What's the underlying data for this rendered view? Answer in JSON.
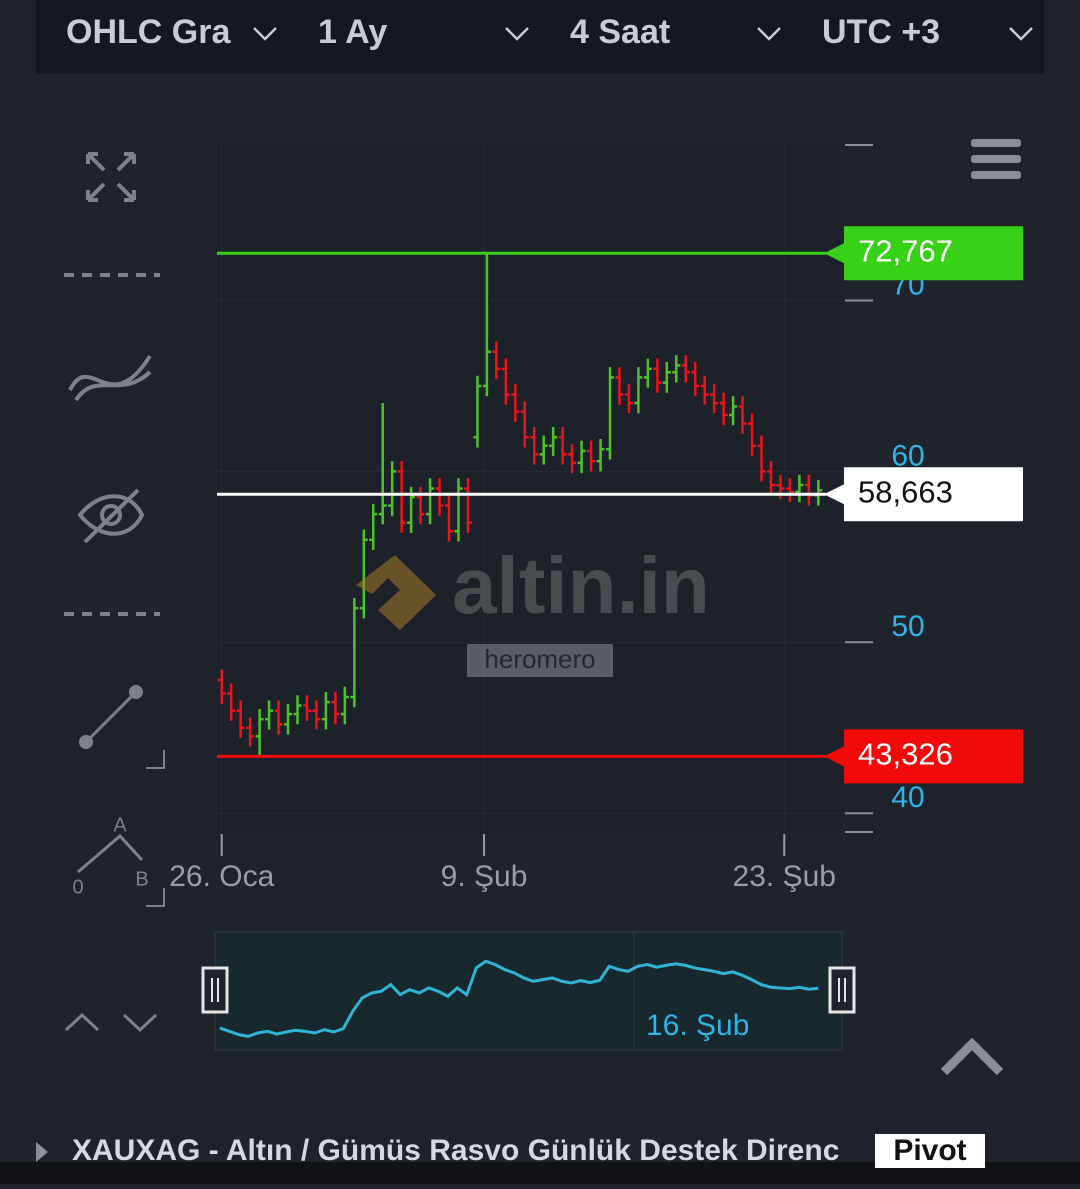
{
  "ui": {
    "dropdowns": [
      "OHLC Gra",
      "1 Ay",
      "4 Saat",
      "UTC +3"
    ],
    "tool_labels": [
      "A",
      "B",
      "0"
    ],
    "watermark": "altin.in",
    "watermark_user": "heromero",
    "bottom_title": "XAUXAG - Altın / Gümüs Rasvo Günlük Destek Direnc",
    "bottom_button": "Pivot"
  },
  "chart_data": {
    "type": "ohlc",
    "x": [
      0,
      1,
      2,
      3,
      4,
      5,
      6,
      7,
      8,
      9,
      10,
      11,
      12,
      13,
      14,
      15,
      16,
      17,
      18,
      19,
      20,
      21,
      22,
      23,
      24,
      25,
      26,
      27,
      28,
      29,
      30,
      31,
      32,
      33,
      34,
      35,
      36,
      37,
      38,
      39,
      40,
      41,
      42,
      43,
      44,
      45,
      46,
      47,
      48,
      49,
      50,
      51,
      52,
      53,
      54,
      55,
      56,
      57,
      58,
      59,
      60,
      61,
      62,
      63
    ],
    "open": [
      47.8,
      47.0,
      46.0,
      45.0,
      44.5,
      45.5,
      46.0,
      45.2,
      45.8,
      46.3,
      46.0,
      45.5,
      46.5,
      45.8,
      46.8,
      52.0,
      56.0,
      57.5,
      58.0,
      60.0,
      57.0,
      58.5,
      57.5,
      59.0,
      58.0,
      56.5,
      59.0,
      62.0,
      65.0,
      67.0,
      66.0,
      64.5,
      63.5,
      62.0,
      61.0,
      61.5,
      62.0,
      61.0,
      60.5,
      61.2,
      60.6,
      61.3,
      65.5,
      64.5,
      64.0,
      65.5,
      66.0,
      65.2,
      65.8,
      66.2,
      65.8,
      65.0,
      64.5,
      64.0,
      63.3,
      63.8,
      62.8,
      61.5,
      60.0,
      59.2,
      59.0,
      58.8,
      59.2,
      58.6
    ],
    "high": [
      48.4,
      47.6,
      46.6,
      45.6,
      46.1,
      46.6,
      46.6,
      46.4,
      46.9,
      46.9,
      46.6,
      47.1,
      47.1,
      47.4,
      52.6,
      56.6,
      58.1,
      64.0,
      60.6,
      60.6,
      59.1,
      59.1,
      59.6,
      59.6,
      58.6,
      59.6,
      59.6,
      65.6,
      72.767,
      67.6,
      66.6,
      65.1,
      64.1,
      62.6,
      62.1,
      62.6,
      62.6,
      61.6,
      61.8,
      61.8,
      61.9,
      66.1,
      66.1,
      65.1,
      66.1,
      66.6,
      66.6,
      66.4,
      66.8,
      66.8,
      66.4,
      65.6,
      65.1,
      64.6,
      64.4,
      64.4,
      63.4,
      62.1,
      60.6,
      59.8,
      59.6,
      59.8,
      59.8,
      59.5
    ],
    "low": [
      46.4,
      45.4,
      44.4,
      43.9,
      43.4,
      44.9,
      44.6,
      44.6,
      45.2,
      45.4,
      44.9,
      44.9,
      45.2,
      45.2,
      46.2,
      51.4,
      55.4,
      56.9,
      57.4,
      56.4,
      56.4,
      56.9,
      56.9,
      57.4,
      55.9,
      55.9,
      56.4,
      61.4,
      64.4,
      65.4,
      63.9,
      62.9,
      61.4,
      60.4,
      60.4,
      60.9,
      60.4,
      59.9,
      59.9,
      60.0,
      60.0,
      60.7,
      63.9,
      63.4,
      63.4,
      64.9,
      64.6,
      64.6,
      65.2,
      65.2,
      64.4,
      63.9,
      63.4,
      62.7,
      62.7,
      62.2,
      60.9,
      59.4,
      58.6,
      58.4,
      58.2,
      58.2,
      58.0,
      58.0
    ],
    "close": [
      47.0,
      46.0,
      45.0,
      44.5,
      45.5,
      46.0,
      45.2,
      45.8,
      46.3,
      46.0,
      45.5,
      46.5,
      45.8,
      46.8,
      52.0,
      56.0,
      57.5,
      58.0,
      60.0,
      57.0,
      58.5,
      57.5,
      59.0,
      58.0,
      56.5,
      59.0,
      57.0,
      65.0,
      67.0,
      66.0,
      64.5,
      63.5,
      62.0,
      61.0,
      61.5,
      62.0,
      61.0,
      60.5,
      61.2,
      60.6,
      61.3,
      65.5,
      64.5,
      64.0,
      65.5,
      66.0,
      65.2,
      65.8,
      66.2,
      65.8,
      65.0,
      64.5,
      64.0,
      63.3,
      63.8,
      62.8,
      61.5,
      60.0,
      59.2,
      59.0,
      58.8,
      59.2,
      58.6,
      58.9
    ],
    "up_color": "#4cc329",
    "down_color": "#e8141e",
    "xlim": [
      -0.5,
      65.5
    ],
    "xticks": [
      {
        "value": 0,
        "label": "26. Oca"
      },
      {
        "value": 27.7,
        "label": "9. Şub"
      },
      {
        "value": 59.4,
        "label": "23. Şub"
      }
    ],
    "ylim": [
      38.9,
      79.1
    ],
    "yticks": [
      40,
      50,
      60,
      70
    ],
    "grid": true,
    "levels": [
      {
        "value": 72.767,
        "label": "72,767",
        "color": "#37d117"
      },
      {
        "value": 58.663,
        "label": "58,663",
        "color": "#ffffff"
      },
      {
        "value": 43.326,
        "label": "43,326",
        "color": "#f20a0a"
      }
    ],
    "navigator_label": "16. Şub",
    "line_color": "#2fb4d6"
  }
}
